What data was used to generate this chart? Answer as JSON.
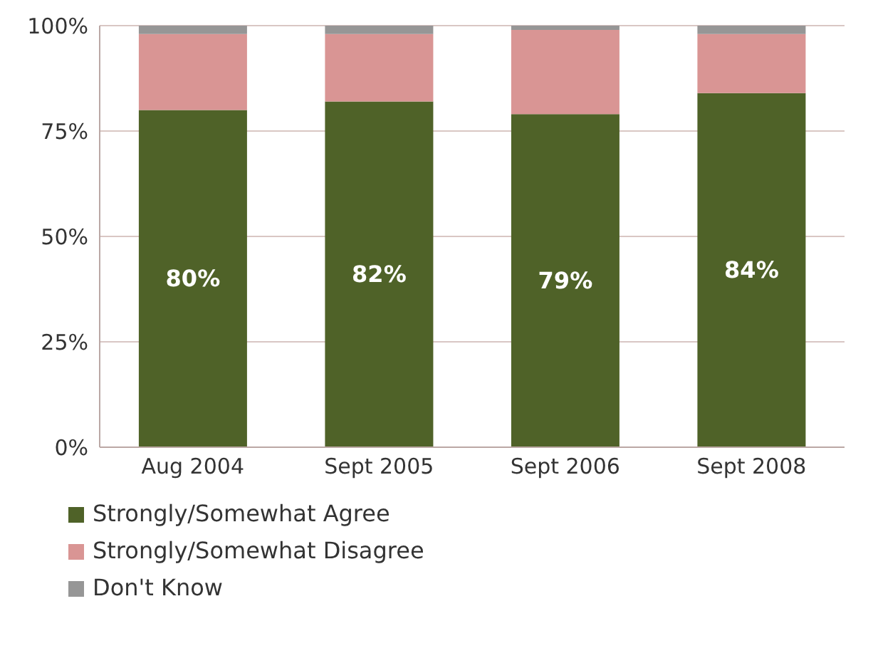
{
  "chart_data": {
    "type": "bar",
    "stacked": true,
    "categories": [
      "Aug 2004",
      "Sept 2005",
      "Sept 2006",
      "Sept 2008"
    ],
    "series": [
      {
        "name": "Strongly/Somewhat Agree",
        "color": "#4f6228",
        "values": [
          80,
          82,
          79,
          84
        ],
        "value_labels": [
          "80%",
          "82%",
          "79%",
          "84%"
        ]
      },
      {
        "name": "Strongly/Somewhat Disagree",
        "color": "#d99594",
        "values": [
          18,
          16,
          20,
          14
        ]
      },
      {
        "name": "Don't Know",
        "color": "#969696",
        "values": [
          2,
          2,
          1,
          2
        ]
      }
    ],
    "ylim": [
      0,
      100
    ],
    "yticks": [
      {
        "value": 0,
        "label": "0%"
      },
      {
        "value": 25,
        "label": "25%"
      },
      {
        "value": 50,
        "label": "50%"
      },
      {
        "value": 75,
        "label": "75%"
      },
      {
        "value": 100,
        "label": "100%"
      }
    ],
    "grid": "y",
    "legend": "bottom"
  }
}
